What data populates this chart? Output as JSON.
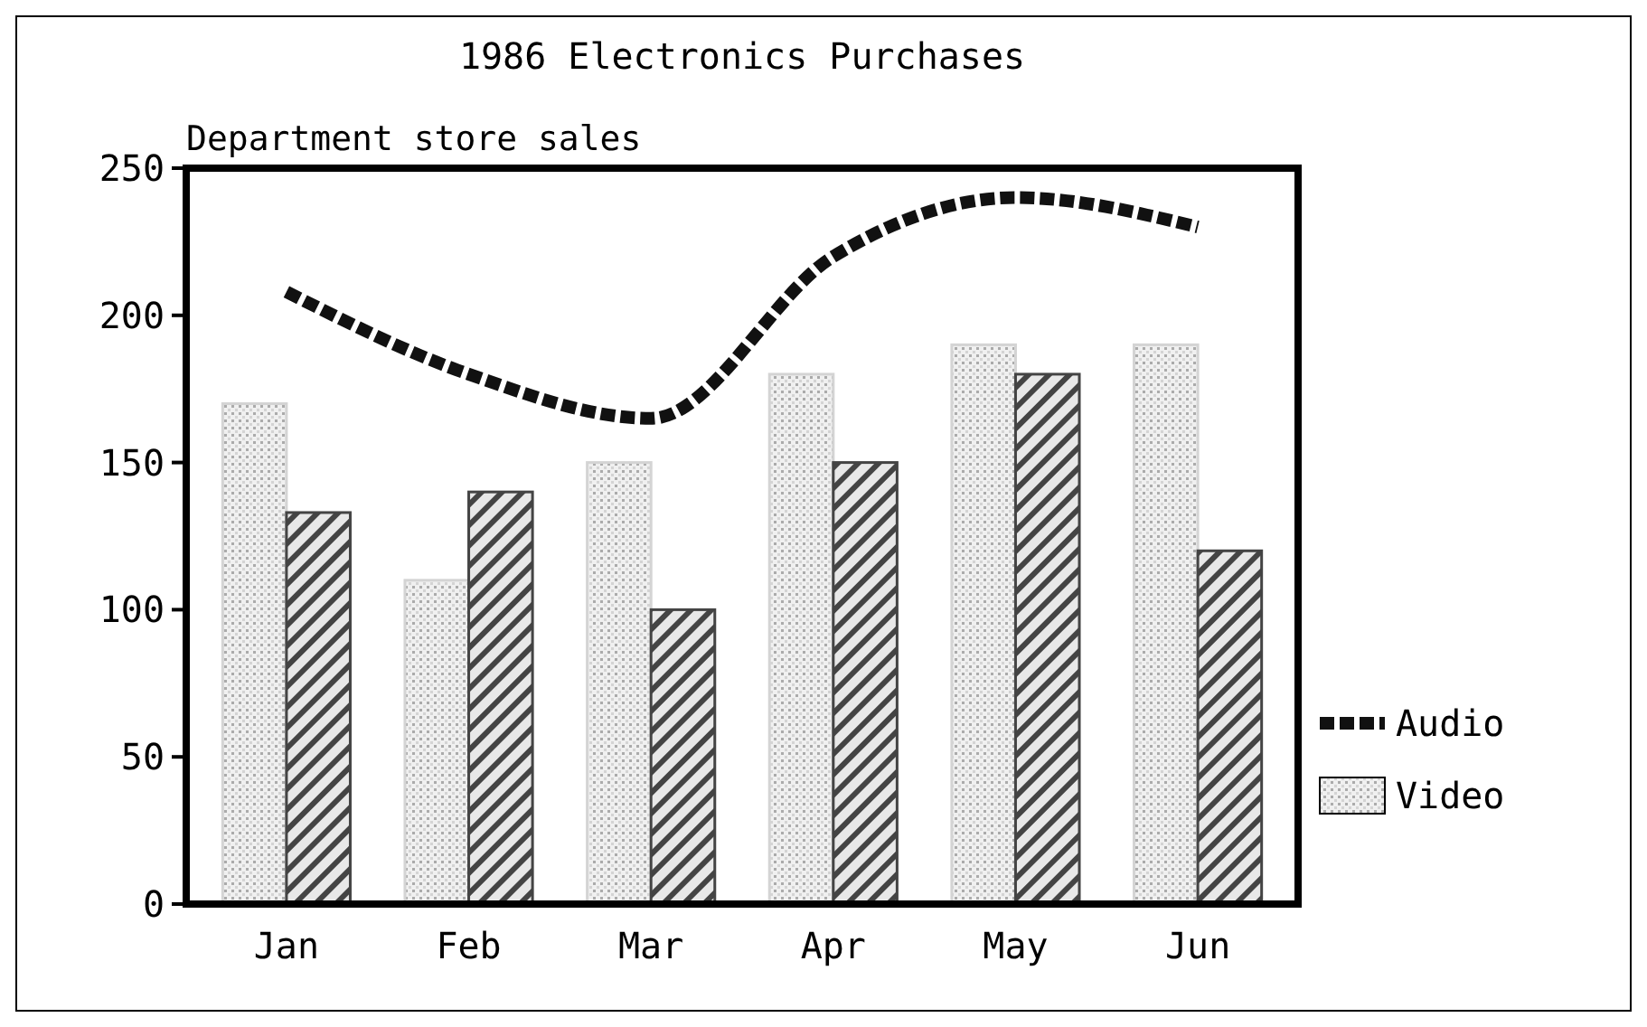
{
  "chart_data": {
    "type": "bar",
    "title": "1986 Electronics Purchases",
    "subtitle": "Department store sales",
    "categories": [
      "Jan",
      "Feb",
      "Mar",
      "Apr",
      "May",
      "Jun"
    ],
    "series": [
      {
        "name": "Video",
        "color": "#d4d4d4",
        "values": [
          170,
          110,
          150,
          180,
          190,
          190
        ]
      },
      {
        "color": "#444444",
        "values": [
          133,
          140,
          100,
          150,
          180,
          120
        ]
      },
      {
        "name": "Audio",
        "type": "line",
        "color": "#111111",
        "line_style": "dashed",
        "values": [
          208,
          180,
          165,
          220,
          240,
          230
        ]
      }
    ],
    "ylim": [
      0,
      250
    ],
    "yticks": [
      0,
      50,
      100,
      150,
      200,
      250
    ],
    "legend": "right",
    "grid": false
  }
}
